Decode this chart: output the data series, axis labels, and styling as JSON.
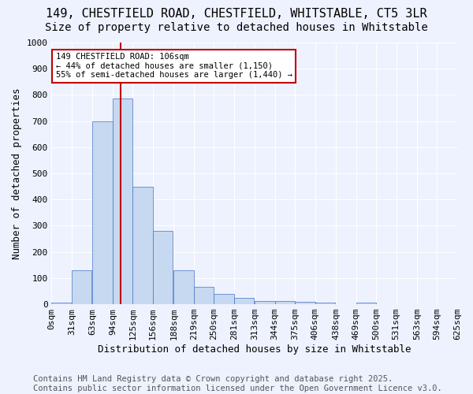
{
  "title": "149, CHESTFIELD ROAD, CHESTFIELD, WHITSTABLE, CT5 3LR",
  "subtitle": "Size of property relative to detached houses in Whitstable",
  "xlabel": "Distribution of detached houses by size in Whitstable",
  "ylabel": "Number of detached properties",
  "bin_labels": [
    "0sqm",
    "31sqm",
    "63sqm",
    "94sqm",
    "125sqm",
    "156sqm",
    "188sqm",
    "219sqm",
    "250sqm",
    "281sqm",
    "313sqm",
    "344sqm",
    "375sqm",
    "406sqm",
    "438sqm",
    "469sqm",
    "500sqm",
    "531sqm",
    "563sqm",
    "594sqm",
    "625sqm"
  ],
  "bin_edges": [
    0,
    31,
    63,
    94,
    125,
    156,
    188,
    219,
    250,
    281,
    313,
    344,
    375,
    406,
    438,
    469,
    500,
    531,
    563,
    594,
    625
  ],
  "bin_values": [
    5,
    130,
    700,
    785,
    450,
    280,
    130,
    68,
    38,
    25,
    12,
    12,
    10,
    5,
    0,
    5,
    0,
    0,
    0,
    0
  ],
  "bar_color": "#c6d9f0",
  "bar_edge_color": "#4472c4",
  "vline_color": "#c00000",
  "property_sqm": 106,
  "annotation_text": "149 CHESTFIELD ROAD: 106sqm\n← 44% of detached houses are smaller (1,150)\n55% of semi-detached houses are larger (1,440) →",
  "annotation_box_color": "#ffffff",
  "annotation_box_edge": "#c00000",
  "ylim": [
    0,
    1000
  ],
  "yticks": [
    0,
    100,
    200,
    300,
    400,
    500,
    600,
    700,
    800,
    900,
    1000
  ],
  "footer": "Contains HM Land Registry data © Crown copyright and database right 2025.\nContains public sector information licensed under the Open Government Licence v3.0.",
  "background_color": "#eef2ff",
  "grid_color": "#ffffff",
  "title_fontsize": 11,
  "subtitle_fontsize": 10,
  "axis_label_fontsize": 9,
  "tick_fontsize": 8,
  "footer_fontsize": 7.5
}
